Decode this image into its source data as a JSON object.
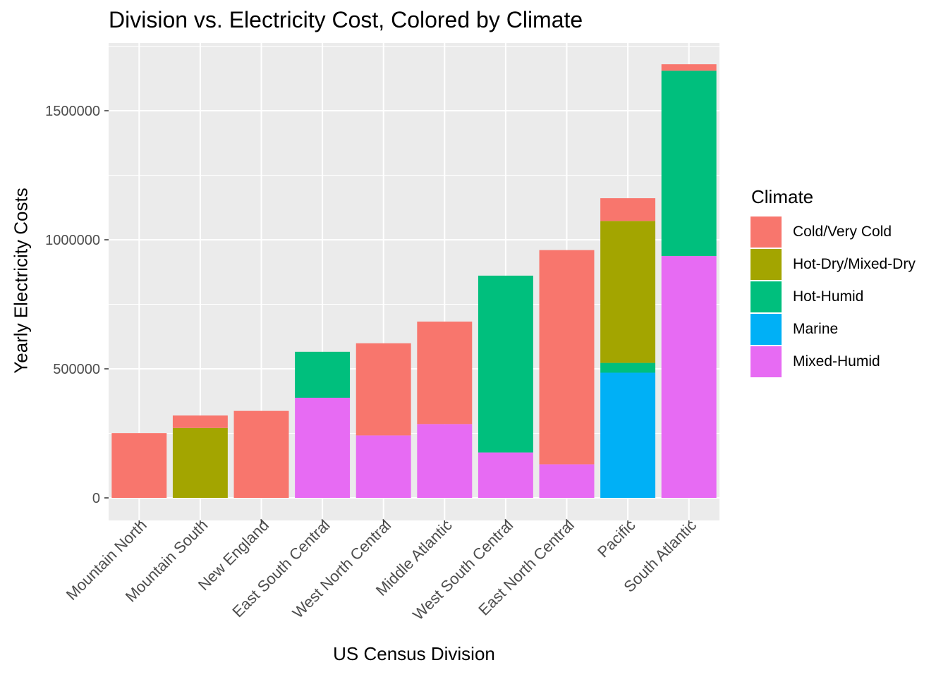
{
  "chart_data": {
    "type": "bar",
    "stacked": true,
    "title": "Division vs. Electricity Cost, Colored by Climate",
    "xlabel": "US Census Division",
    "ylabel": "Yearly Electricity Costs",
    "ylim": [
      0,
      1750000
    ],
    "yticks": [
      0,
      500000,
      1000000,
      1500000
    ],
    "ytick_labels": [
      "0",
      "500000",
      "1000000",
      "1500000"
    ],
    "grid": true,
    "legend": {
      "title": "Climate",
      "position": "right"
    },
    "categories": [
      "Mountain North",
      "Mountain South",
      "New England",
      "East South Central",
      "West North Central",
      "Middle Atlantic",
      "West South Central",
      "East North Central",
      "Pacific",
      "South Atlantic"
    ],
    "series": [
      {
        "name": "Mixed-Humid",
        "color": "#E76BF3",
        "values": [
          0,
          0,
          0,
          388000,
          242000,
          286000,
          176000,
          130000,
          0,
          937000
        ]
      },
      {
        "name": "Marine",
        "color": "#00B0F6",
        "values": [
          0,
          0,
          0,
          0,
          0,
          0,
          0,
          0,
          485000,
          0
        ]
      },
      {
        "name": "Hot-Humid",
        "color": "#00BF7D",
        "values": [
          0,
          0,
          0,
          178000,
          0,
          0,
          685000,
          0,
          38000,
          718000
        ]
      },
      {
        "name": "Hot-Dry/Mixed-Dry",
        "color": "#A3A500",
        "values": [
          0,
          271000,
          0,
          0,
          0,
          0,
          0,
          0,
          550000,
          0
        ]
      },
      {
        "name": "Cold/Very Cold",
        "color": "#F8766D",
        "values": [
          251000,
          48000,
          337000,
          0,
          357000,
          397000,
          0,
          830000,
          88000,
          25000
        ]
      }
    ],
    "legend_order": [
      "Cold/Very Cold",
      "Hot-Dry/Mixed-Dry",
      "Hot-Humid",
      "Marine",
      "Mixed-Humid"
    ],
    "panel_background": "#EBEBEB",
    "grid_color": "#FFFFFF"
  }
}
